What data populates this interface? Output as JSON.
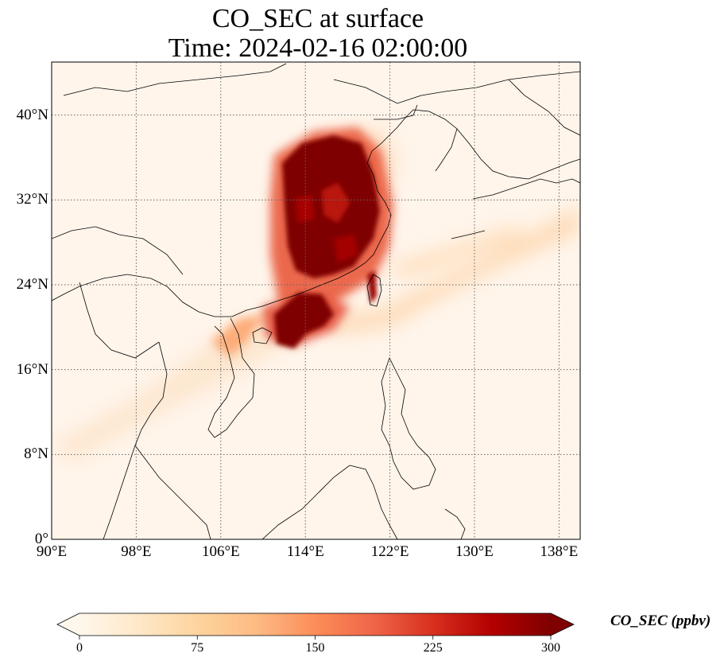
{
  "title": {
    "line1": "CO_SEC at surface",
    "line2": "Time: 2024-02-16 02:00:00"
  },
  "map": {
    "extent": {
      "lon": [
        90,
        140
      ],
      "lat": [
        0,
        45
      ]
    },
    "lon_ticks": [
      {
        "value": 90,
        "label": "90°E"
      },
      {
        "value": 98,
        "label": "98°E"
      },
      {
        "value": 106,
        "label": "106°E"
      },
      {
        "value": 114,
        "label": "114°E"
      },
      {
        "value": 122,
        "label": "122°E"
      },
      {
        "value": 130,
        "label": "130°E"
      },
      {
        "value": 138,
        "label": "138°E"
      }
    ],
    "lat_ticks": [
      {
        "value": 0,
        "label": "0°"
      },
      {
        "value": 8,
        "label": "8°N"
      },
      {
        "value": 16,
        "label": "16°N"
      },
      {
        "value": 24,
        "label": "24°N"
      },
      {
        "value": 32,
        "label": "32°N"
      },
      {
        "value": 40,
        "label": "40°N"
      }
    ],
    "gridlines": "dotted",
    "background_color": "#fff5eb"
  },
  "colorbar": {
    "label": "CO_SEC (ppbv)",
    "colormap": "OrRd",
    "colors": [
      "#fff7ec",
      "#fee8c8",
      "#fdd49e",
      "#fdbb84",
      "#fc8d59",
      "#ef6548",
      "#d7301f",
      "#b30000",
      "#7f0000"
    ],
    "min": 0,
    "max": 300,
    "extend": "both",
    "ticks": [
      {
        "value": 0,
        "label": "0"
      },
      {
        "value": 75,
        "label": "75"
      },
      {
        "value": 150,
        "label": "150"
      },
      {
        "value": 225,
        "label": "225"
      },
      {
        "value": 300,
        "label": "300"
      }
    ]
  }
}
